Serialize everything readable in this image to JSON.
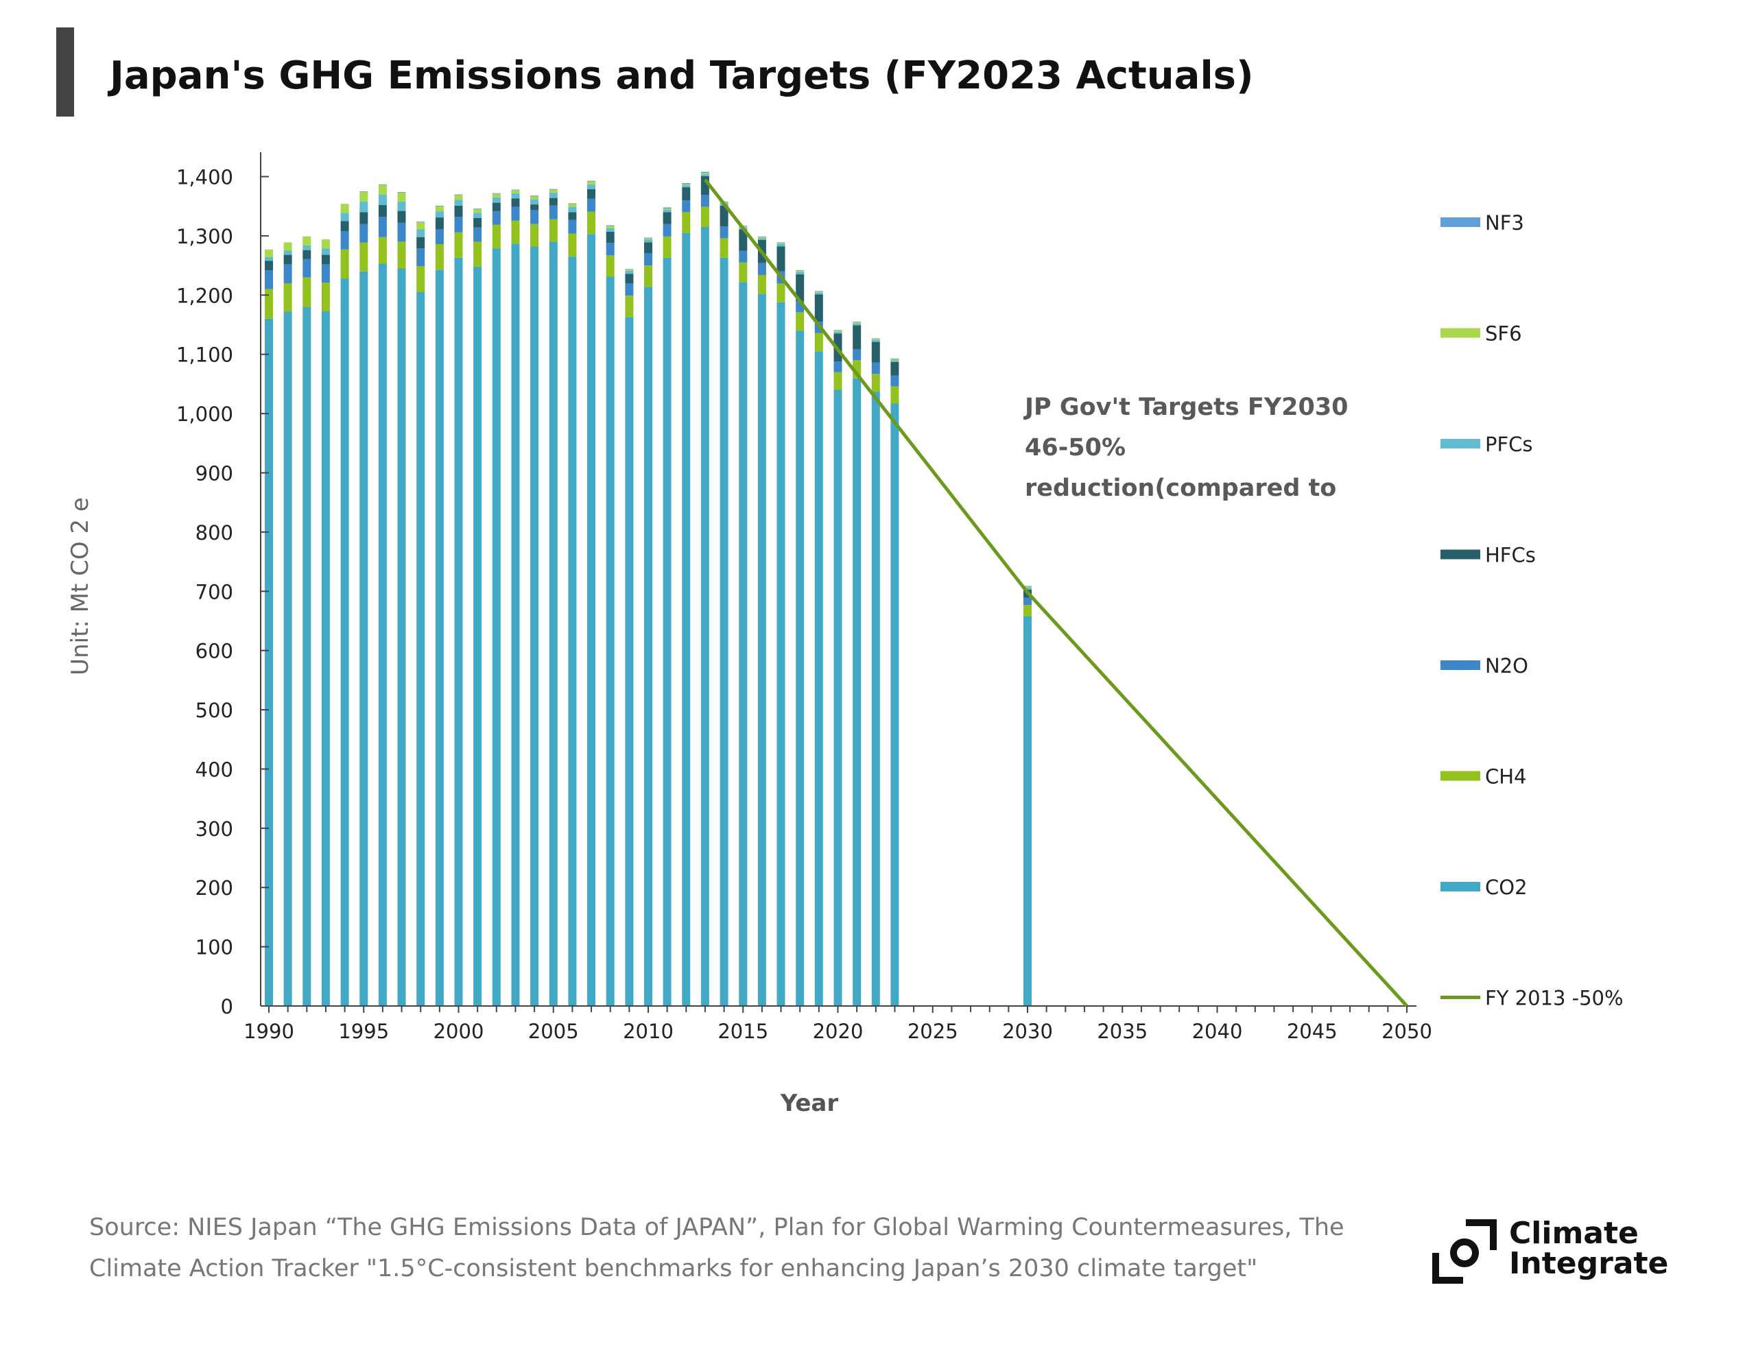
{
  "header": {
    "title": "Japan's GHG Emissions and Targets  (FY2023 Actuals)"
  },
  "footer": {
    "source_line1": "Source: NIES Japan “The GHG Emissions Data of JAPAN”, Plan for Global Warming Countermeasures, The",
    "source_line2": "Climate Action Tracker \"1.5°C-consistent benchmarks for enhancing Japan’s 2030 climate target\""
  },
  "logo": {
    "line1": "Climate",
    "line2": "Integrate"
  },
  "chart_data": {
    "type": "bar",
    "stacked": true,
    "xlabel": "Year",
    "ylabel": "Unit: Mt CO 2 e",
    "ylim": [
      0,
      1400
    ],
    "yticks": [
      0,
      100,
      200,
      300,
      400,
      500,
      600,
      700,
      800,
      900,
      1000,
      1100,
      1200,
      1300,
      1400
    ],
    "ytick_labels": [
      "0",
      "100",
      "200",
      "300",
      "400",
      "500",
      "600",
      "700",
      "800",
      "900",
      "1,000",
      "1,100",
      "1,200",
      "1,300",
      "1,400"
    ],
    "xlim": [
      1990,
      2050
    ],
    "xticks": [
      1990,
      1995,
      2000,
      2005,
      2010,
      2015,
      2020,
      2025,
      2030,
      2035,
      2040,
      2045,
      2050
    ],
    "grid": false,
    "legend_position": "right",
    "categories": [
      1990,
      1991,
      1992,
      1993,
      1994,
      1995,
      1996,
      1997,
      1998,
      1999,
      2000,
      2001,
      2002,
      2003,
      2004,
      2005,
      2006,
      2007,
      2008,
      2009,
      2010,
      2011,
      2012,
      2013,
      2014,
      2015,
      2016,
      2017,
      2018,
      2019,
      2020,
      2021,
      2022,
      2023,
      2030
    ],
    "series": [
      {
        "name": "CO2",
        "color": "#41a8c6",
        "values": [
          1160,
          1172,
          1180,
          1173,
          1228,
          1240,
          1253,
          1245,
          1205,
          1243,
          1263,
          1248,
          1279,
          1287,
          1282,
          1290,
          1265,
          1303,
          1231,
          1163,
          1214,
          1263,
          1305,
          1315,
          1263,
          1222,
          1202,
          1188,
          1140,
          1105,
          1040,
          1060,
          1037,
          1017,
          658
        ]
      },
      {
        "name": "CH4",
        "color": "#93c21f",
        "values": [
          50,
          48,
          50,
          48,
          49,
          49,
          45,
          45,
          44,
          43,
          43,
          42,
          40,
          39,
          38,
          38,
          39,
          38,
          36,
          36,
          36,
          36,
          35,
          34,
          33,
          33,
          32,
          32,
          31,
          31,
          30,
          30,
          30,
          29,
          19
        ]
      },
      {
        "name": "N2O",
        "color": "#3b87c9",
        "values": [
          32,
          32,
          31,
          31,
          31,
          31,
          34,
          32,
          30,
          25,
          26,
          24,
          23,
          23,
          23,
          23,
          23,
          22,
          21,
          21,
          21,
          21,
          20,
          20,
          20,
          20,
          20,
          20,
          19,
          19,
          18,
          19,
          19,
          18,
          12
        ]
      },
      {
        "name": "HFCs",
        "color": "#275f6b",
        "values": [
          16,
          16,
          15,
          16,
          17,
          20,
          20,
          20,
          19,
          20,
          19,
          16,
          14,
          14,
          10,
          13,
          13,
          16,
          19,
          16,
          18,
          20,
          22,
          32,
          35,
          36,
          39,
          42,
          45,
          46,
          47,
          40,
          35,
          23,
          14
        ]
      },
      {
        "name": "PFCs",
        "color": "#62bcd1",
        "values": [
          6,
          7,
          8,
          11,
          14,
          18,
          18,
          16,
          13,
          10,
          10,
          9,
          9,
          9,
          9,
          9,
          9,
          8,
          6,
          5,
          5,
          4,
          3,
          3,
          4,
          3,
          3,
          4,
          4,
          3,
          3,
          3,
          3,
          3,
          3
        ]
      },
      {
        "name": "SF6",
        "color": "#a9d84a",
        "values": [
          13,
          14,
          15,
          15,
          15,
          16,
          16,
          15,
          12,
          9,
          8,
          6,
          6,
          5,
          5,
          5,
          5,
          5,
          4,
          2,
          2,
          2,
          2,
          2,
          2,
          2,
          2,
          2,
          2,
          2,
          2,
          2,
          2,
          2,
          2
        ]
      },
      {
        "name": "NF3",
        "color": "#5fa0d8",
        "values": [
          0,
          0,
          0,
          0,
          0,
          1,
          1,
          1,
          1,
          1,
          1,
          1,
          1,
          1,
          1,
          1,
          1,
          1,
          1,
          1,
          1,
          2,
          2,
          2,
          1,
          1,
          1,
          1,
          1,
          1,
          1,
          1,
          1,
          1,
          1
        ]
      }
    ],
    "line": {
      "name": "FY 2013 -50%",
      "color": "#6c9a1c",
      "points": [
        [
          2013,
          1395
        ],
        [
          2030,
          698
        ],
        [
          2050,
          0
        ]
      ]
    },
    "annotations": [
      "JP Gov't Targets FY2030",
      "46-50%",
      "reduction(compared to"
    ],
    "legend_order": [
      "NF3",
      "SF6",
      "PFCs",
      "HFCs",
      "N2O",
      "CH4",
      "CO2",
      "FY 2013 -50%"
    ]
  }
}
